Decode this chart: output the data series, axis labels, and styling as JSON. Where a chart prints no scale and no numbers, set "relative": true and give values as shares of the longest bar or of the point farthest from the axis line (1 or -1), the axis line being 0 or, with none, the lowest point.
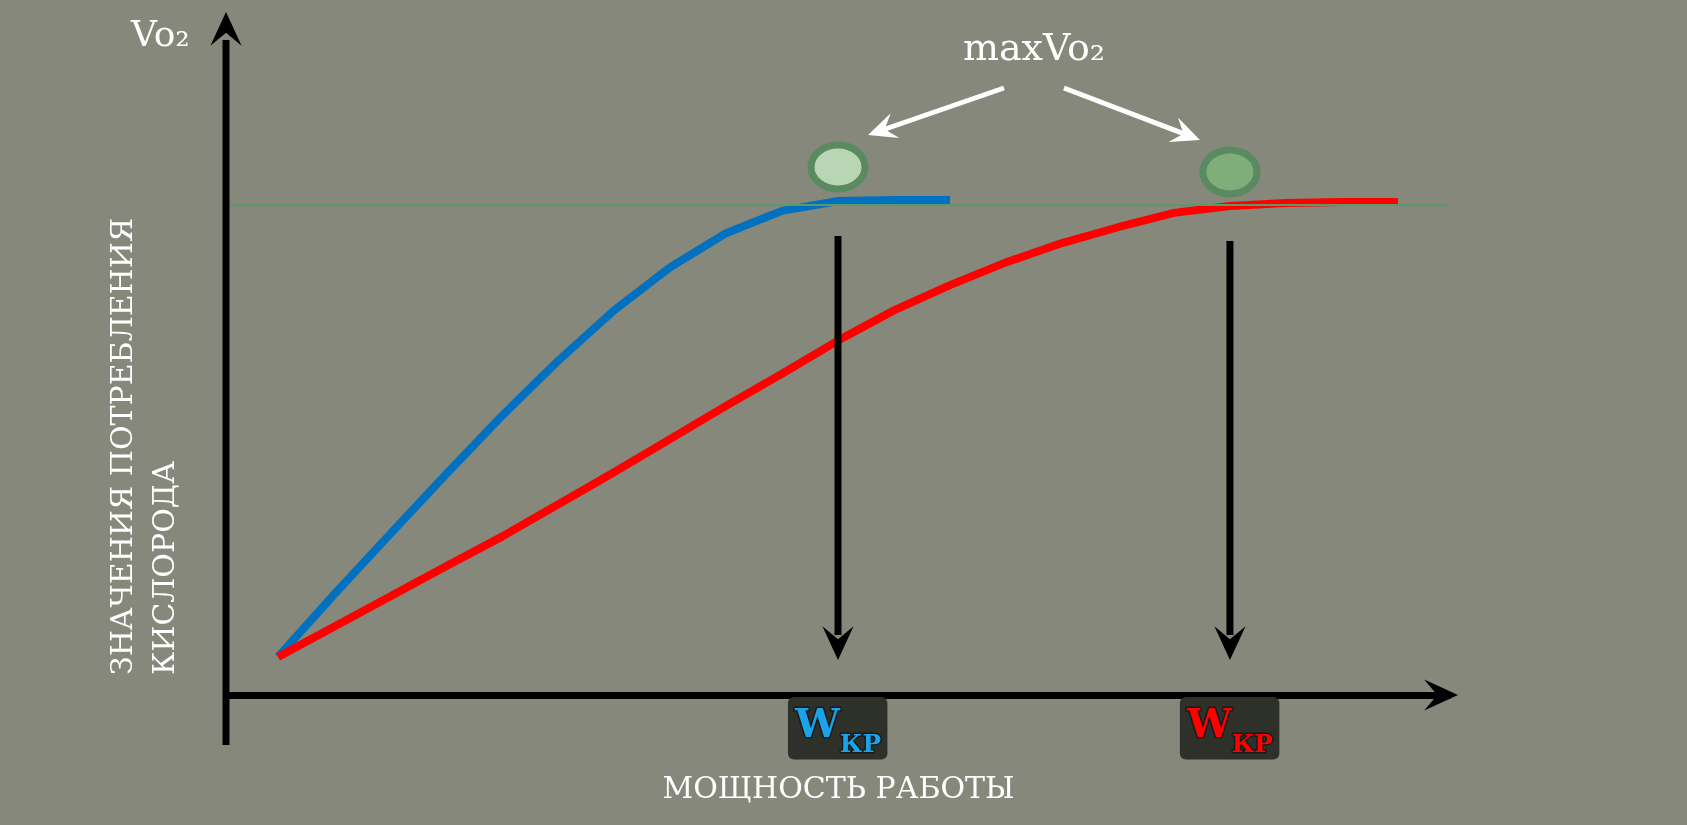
{
  "chart_data": {
    "type": "line",
    "relative": true,
    "ylabel": "ЗНАЧЕНИЯ ПОТРЕБЛЕНИЯ КИСЛОРОДА",
    "xlabel": "МОЩНОСТЬ РАБОТЫ",
    "categories": [
      null,
      null,
      null,
      null,
      null,
      null,
      null,
      null,
      null,
      null,
      null,
      null,
      null,
      null,
      null,
      null,
      null,
      null,
      null,
      null,
      null
    ],
    "series": [
      {
        "color": "#0070c0",
        "values": [
          0.077,
          0.203,
          0.325,
          0.446,
          0.564,
          0.675,
          0.777,
          0.864,
          0.933,
          0.978,
          0.998,
          1.0,
          1.0,
          null,
          null,
          null,
          null,
          null,
          null,
          null,
          null
        ]
      },
      {
        "color": "#ff0000",
        "values": [
          0.077,
          0.138,
          0.199,
          0.26,
          0.32,
          0.385,
          0.45,
          0.517,
          0.584,
          0.649,
          0.716,
          0.777,
          0.828,
          0.874,
          0.913,
          0.945,
          0.974,
          0.988,
          0.994,
          0.996,
          0.996
        ]
      }
    ],
    "ref_lines": [
      {
        "axis": "y",
        "value": 0.99,
        "color": "#5a9a6a"
      }
    ],
    "annotations": [
      "Vo₂",
      "maxVo₂",
      "W$_{КР}$",
      "W$_{КР}$"
    ],
    "tick_labels": false,
    "grid": false,
    "line_style": "solid"
  }
}
